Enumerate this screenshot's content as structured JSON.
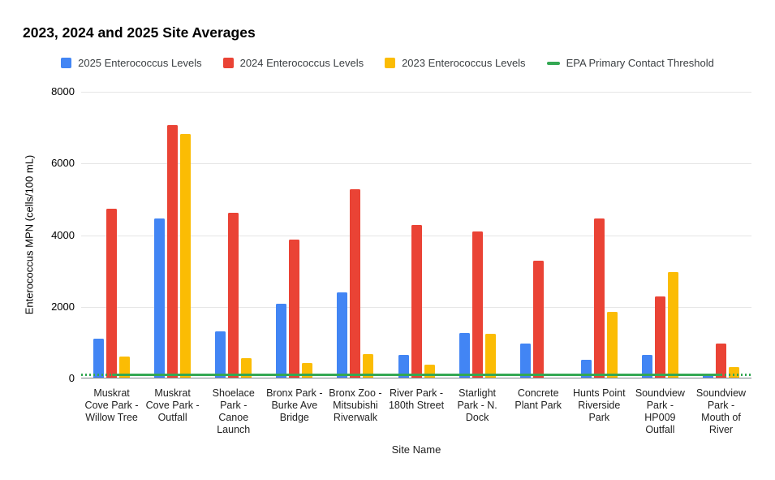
{
  "title": "2023, 2024 and 2025 Site Averages",
  "axes": {
    "x_title": "Site Name",
    "y_title": "Enterococcus MPN (cells/100 mL)"
  },
  "legend": [
    {
      "label": "2025 Enterococcus Levels",
      "color": "#4285F4",
      "marker": "square"
    },
    {
      "label": "2024 Enterococcus Levels",
      "color": "#EA4335",
      "marker": "square"
    },
    {
      "label": "2023 Enterococcus Levels",
      "color": "#FBBC04",
      "marker": "square"
    },
    {
      "label": "EPA Primary Contact Threshold",
      "color": "#34A853",
      "marker": "line"
    }
  ],
  "colors": {
    "series_2025": "#4285F4",
    "series_2024": "#EA4335",
    "series_2023": "#FBBC04",
    "threshold": "#34A853",
    "gridline": "#e6e6e6"
  },
  "chart_data": {
    "type": "bar",
    "title": "2023, 2024 and 2025 Site Averages",
    "xlabel": "Site Name",
    "ylabel": "Enterococcus MPN (cells/100 mL)",
    "ylim": [
      0,
      8000
    ],
    "yticks": [
      0,
      2000,
      4000,
      6000,
      8000
    ],
    "grid": true,
    "legend_position": "top",
    "categories": [
      "Muskrat Cove Park - Willow Tree",
      "Muskrat Cove Park - Outfall",
      "Shoelace Park - Canoe Launch",
      "Bronx Park - Burke Ave Bridge",
      "Bronx Zoo - Mitsubishi Riverwalk",
      "River Park - 180th Street",
      "Starlight Park - N. Dock",
      "Concrete Plant Park",
      "Hunts Point Riverside Park",
      "Soundview Park - HP009 Outfall",
      "Soundview Park - Mouth of River"
    ],
    "series": [
      {
        "name": "2025 Enterococcus Levels",
        "color": "#4285F4",
        "values": [
          1110,
          4460,
          1310,
          2080,
          2400,
          650,
          1270,
          980,
          530,
          650,
          110
        ]
      },
      {
        "name": "2024 Enterococcus Levels",
        "color": "#EA4335",
        "values": [
          4740,
          7060,
          4630,
          3880,
          5270,
          4290,
          4110,
          3290,
          4460,
          2290,
          980
        ]
      },
      {
        "name": "2023 Enterococcus Levels",
        "color": "#FBBC04",
        "values": [
          610,
          6830,
          570,
          420,
          680,
          380,
          1250,
          0,
          1870,
          2960,
          310
        ]
      }
    ],
    "threshold_line": {
      "name": "EPA Primary Contact Threshold",
      "color": "#34A853",
      "value": 104
    }
  }
}
